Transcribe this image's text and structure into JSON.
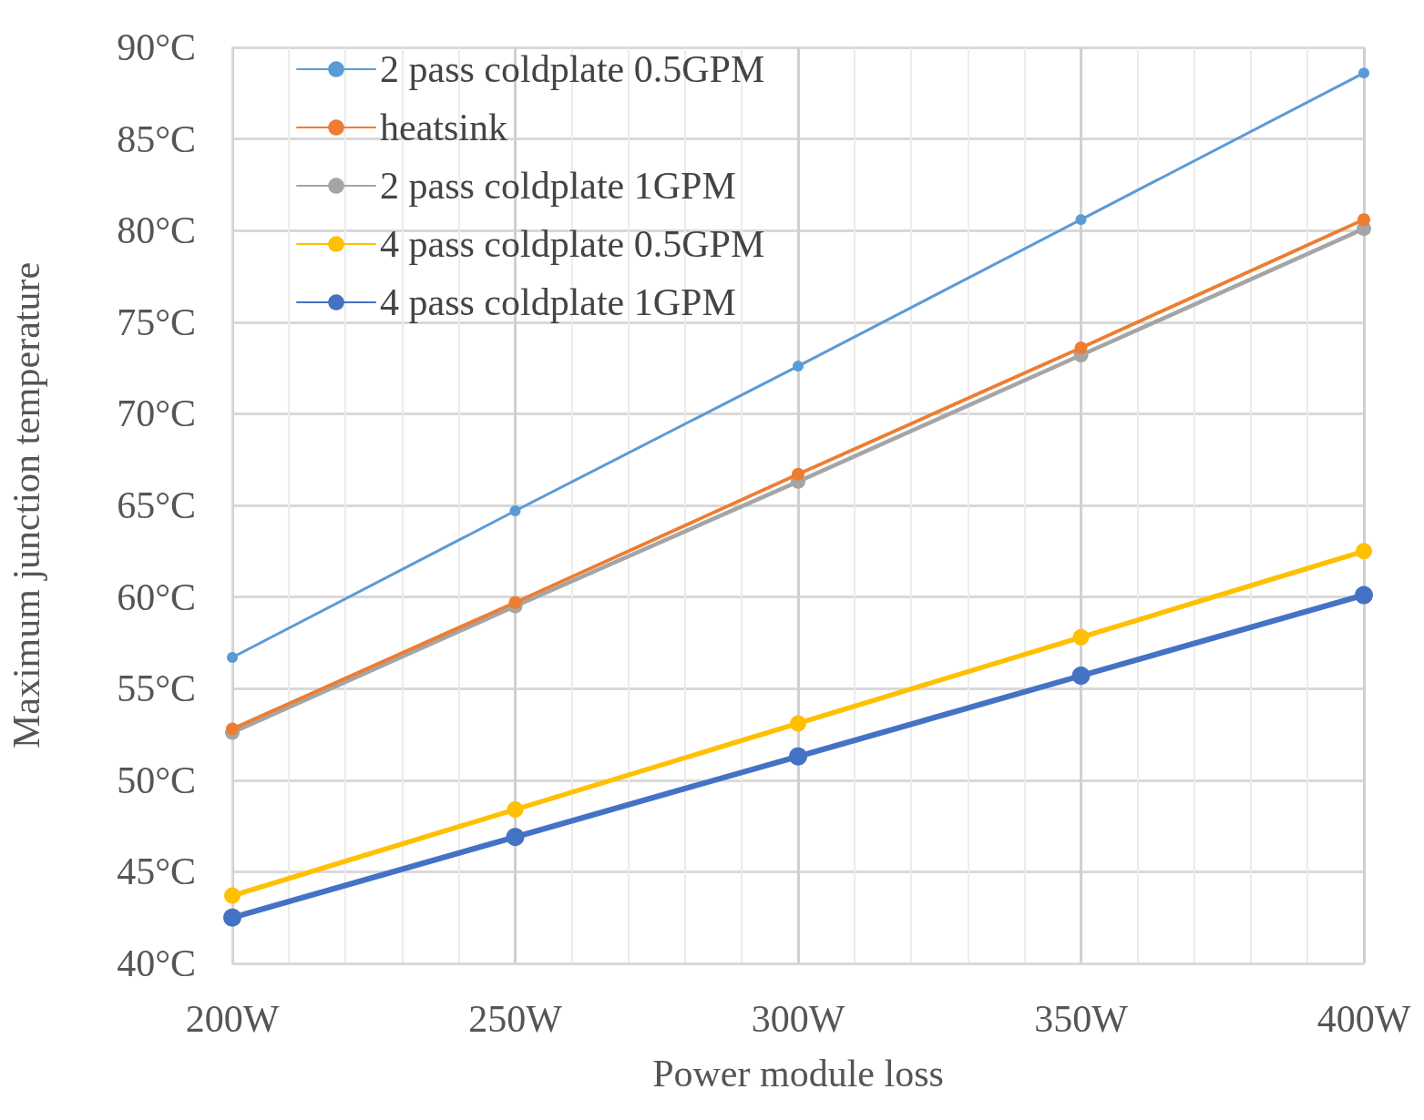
{
  "chart_data": {
    "type": "line",
    "xlabel": "Power module loss",
    "ylabel": "Maximum junction temperature",
    "x": [
      200,
      250,
      300,
      350,
      400
    ],
    "xlim": [
      200,
      400
    ],
    "xticks": [
      {
        "value": 200,
        "label": "200W"
      },
      {
        "value": 250,
        "label": "250W"
      },
      {
        "value": 300,
        "label": "300W"
      },
      {
        "value": 350,
        "label": "350W"
      },
      {
        "value": 400,
        "label": "400W"
      }
    ],
    "ylim": [
      40,
      90
    ],
    "yticks": [
      {
        "value": 40,
        "label": "40°C"
      },
      {
        "value": 45,
        "label": "45°C"
      },
      {
        "value": 50,
        "label": "50°C"
      },
      {
        "value": 55,
        "label": "55°C"
      },
      {
        "value": 60,
        "label": "60°C"
      },
      {
        "value": 65,
        "label": "65°C"
      },
      {
        "value": 70,
        "label": "70°C"
      },
      {
        "value": 75,
        "label": "75°C"
      },
      {
        "value": 80,
        "label": "80°C"
      },
      {
        "value": 85,
        "label": "85°C"
      },
      {
        "value": 90,
        "label": "90°C"
      }
    ],
    "grid": true,
    "legend": "top left",
    "marker": "circle",
    "line_style": "solid",
    "series": [
      {
        "name": "2 pass coldplate 0.5GPM",
        "color": "#5b9bd5",
        "values": [
          56.7,
          64.7,
          72.6,
          80.6,
          88.6
        ]
      },
      {
        "name": "heatsink",
        "color": "#ed7d31",
        "values": [
          52.8,
          59.7,
          66.7,
          73.6,
          80.6
        ]
      },
      {
        "name": "2 pass coldplate 1GPM",
        "color": "#a5a5a5",
        "values": [
          52.6,
          59.5,
          66.3,
          73.2,
          80.1
        ]
      },
      {
        "name": "4 pass coldplate 0.5GPM",
        "color": "#ffc000",
        "values": [
          43.7,
          48.4,
          53.1,
          57.8,
          62.5
        ]
      },
      {
        "name": "4 pass coldplate 1GPM",
        "color": "#4472c4",
        "values": [
          42.5,
          46.9,
          51.3,
          55.7,
          60.1
        ]
      }
    ]
  }
}
